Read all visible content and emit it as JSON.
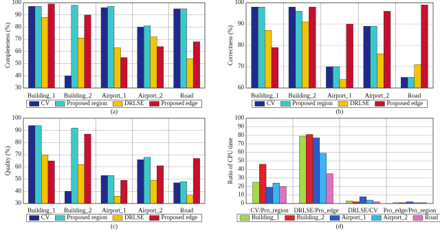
{
  "chart_data": [
    {
      "type": "bar",
      "ylabel": "Completeness (%)",
      "caption": "(a)",
      "categories": [
        "Building_1",
        "Building_2",
        "Airport_1",
        "Airport_2",
        "Road"
      ],
      "series": [
        {
          "name": "CV",
          "color": "#1f2a8c",
          "values": [
            97,
            40,
            96,
            80,
            95
          ]
        },
        {
          "name": "Proposed region",
          "color": "#3cc8c8",
          "values": [
            97,
            98,
            97,
            81,
            95
          ]
        },
        {
          "name": "DRLSE",
          "color": "#f5c400",
          "values": [
            88,
            71,
            63,
            72,
            54
          ]
        },
        {
          "name": "Proposed edge",
          "color": "#c8102e",
          "values": [
            99,
            90,
            55,
            64,
            68
          ]
        }
      ],
      "ylim": [
        30,
        100
      ],
      "yticks": [
        30,
        40,
        50,
        60,
        70,
        80,
        90,
        100
      ],
      "grid": true,
      "legend": "bottom"
    },
    {
      "type": "bar",
      "ylabel": "Correctness (%)",
      "caption": "(b)",
      "categories": [
        "Building_1",
        "Building_2",
        "Airport_1",
        "Airport_2",
        "Road"
      ],
      "series": [
        {
          "name": "CV",
          "color": "#1f2a8c",
          "values": [
            98,
            98,
            70,
            89,
            65
          ]
        },
        {
          "name": "Proposed region",
          "color": "#3cc8c8",
          "values": [
            98,
            96,
            70,
            89,
            65
          ]
        },
        {
          "name": "DRLSE",
          "color": "#f5c400",
          "values": [
            87,
            91,
            64,
            76,
            71
          ]
        },
        {
          "name": "Proposed edge",
          "color": "#c8102e",
          "values": [
            79,
            98,
            90,
            96,
            99
          ]
        }
      ],
      "ylim": [
        60,
        100
      ],
      "yticks": [
        60,
        70,
        80,
        90,
        100
      ],
      "grid": true,
      "legend": "bottom"
    },
    {
      "type": "bar",
      "ylabel": "Quality (%)",
      "caption": "(c)",
      "categories": [
        "Building_1",
        "Building_2",
        "Airport_1",
        "Airport_2",
        "Road"
      ],
      "series": [
        {
          "name": "CV",
          "color": "#1f2a8c",
          "values": [
            94,
            40,
            53,
            66,
            47
          ]
        },
        {
          "name": "Proposed region",
          "color": "#3cc8c8",
          "values": [
            94,
            92,
            53,
            68,
            48
          ]
        },
        {
          "name": "DRLSE",
          "color": "#f5c400",
          "values": [
            70,
            62,
            36,
            49,
            37
          ]
        },
        {
          "name": "Proposed edge",
          "color": "#c8102e",
          "values": [
            65,
            87,
            49,
            61,
            67
          ]
        }
      ],
      "ylim": [
        30,
        100
      ],
      "yticks": [
        30,
        40,
        50,
        60,
        70,
        80,
        90,
        100
      ],
      "grid": true,
      "legend": "bottom"
    },
    {
      "type": "bar",
      "ylabel": "Ratio of CPU time",
      "caption": "(d)",
      "categories": [
        "CV/Pro_region",
        "DRLSE/Pro_edge",
        "DRLSE/CV",
        "Pro_edge/Pro_region"
      ],
      "series": [
        {
          "name": "Building_1",
          "color": "#a6d84a",
          "values": [
            25,
            79,
            3,
            1
          ]
        },
        {
          "name": "Building_2",
          "color": "#e0202a",
          "values": [
            46,
            81,
            2,
            1
          ]
        },
        {
          "name": "Airport_1",
          "color": "#2a5cc8",
          "values": [
            19,
            77,
            8,
            2
          ]
        },
        {
          "name": "Airport_2",
          "color": "#3cb4f0",
          "values": [
            24,
            59,
            4,
            1
          ]
        },
        {
          "name": "Road",
          "color": "#e070c0",
          "values": [
            20,
            35,
            2,
            1
          ]
        }
      ],
      "ylim": [
        0,
        100
      ],
      "yticks": [
        0,
        10,
        20,
        30,
        40,
        50,
        60,
        70,
        80,
        90,
        100
      ],
      "grid": true,
      "legend": "bottom"
    }
  ]
}
